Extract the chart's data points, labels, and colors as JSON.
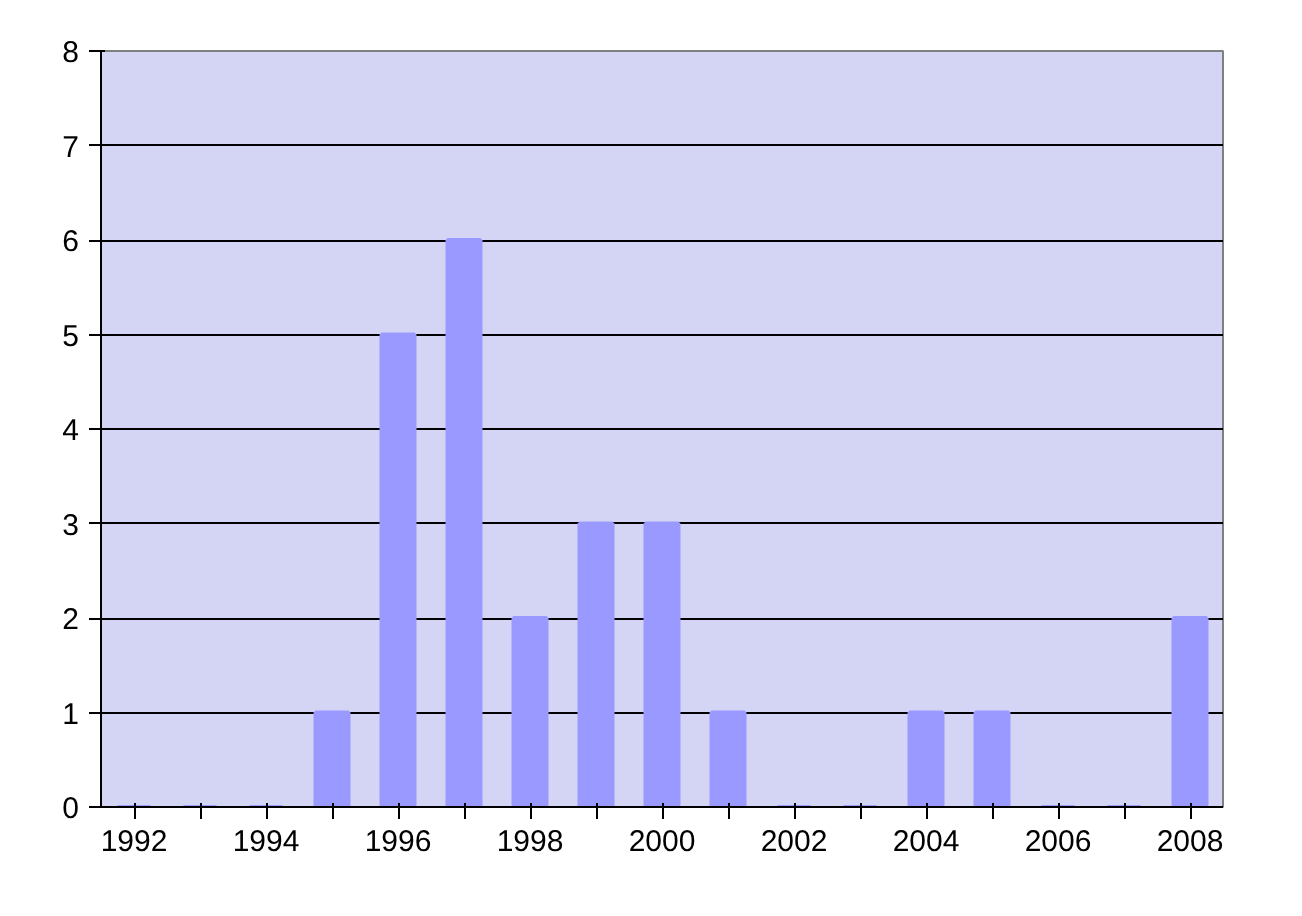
{
  "chart_data": {
    "type": "bar",
    "categories": [
      "1992",
      null,
      "1994",
      null,
      "1996",
      null,
      "1998",
      null,
      "2000",
      null,
      "2002",
      null,
      "2004",
      null,
      "2006",
      null,
      "2008"
    ],
    "values": [
      0,
      0,
      0,
      1,
      5,
      6,
      2,
      3,
      3,
      1,
      0,
      0,
      1,
      1,
      0,
      0,
      2
    ],
    "color": "#9999ff",
    "ylim": [
      0,
      8
    ],
    "yticks": [
      0,
      1,
      2,
      3,
      4,
      5,
      6,
      7,
      8
    ],
    "grid": "y"
  }
}
